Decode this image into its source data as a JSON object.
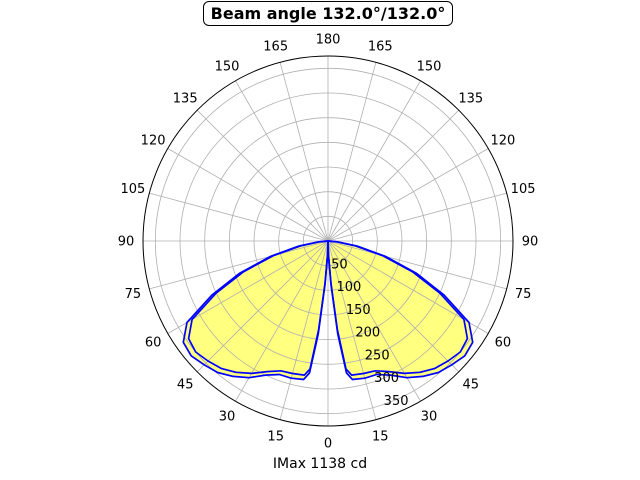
{
  "chart_data": {
    "type": "polar-area",
    "title": "Beam angle 132.0°/132.0°",
    "xlabel": "IMax 1138 cd",
    "angle_tick_labels": [
      "0",
      "15",
      "30",
      "45",
      "60",
      "75",
      "90",
      "105",
      "120",
      "135",
      "150",
      "165",
      "180",
      "165",
      "150",
      "135",
      "120",
      "105",
      "90",
      "75",
      "60",
      "45",
      "30",
      "15"
    ],
    "radial_tick_labels": [
      "50",
      "100",
      "150",
      "200",
      "250",
      "300",
      "350"
    ],
    "radial_ticks": [
      50,
      100,
      150,
      200,
      250,
      300,
      350
    ],
    "rlim": [
      0,
      375
    ],
    "grid": true,
    "fill_color": "#ffff80",
    "line_color": "#0000ff",
    "series": [
      {
        "angles_deg": [
          0,
          2,
          4,
          6,
          8,
          10,
          15,
          20,
          25,
          30,
          35,
          40,
          45,
          50,
          55,
          60,
          65,
          70,
          75,
          80,
          85,
          90
        ],
        "values": [
          0,
          30,
          90,
          190,
          270,
          285,
          288,
          288,
          300,
          320,
          335,
          348,
          355,
          362,
          358,
          330,
          260,
          190,
          120,
          60,
          20,
          0
        ]
      },
      {
        "angles_deg": [
          0,
          2,
          4,
          6,
          8,
          10,
          15,
          20,
          25,
          30,
          35,
          40,
          45,
          50,
          55,
          60,
          65,
          70,
          75,
          80,
          85,
          90
        ],
        "values": [
          0,
          28,
          85,
          180,
          262,
          276,
          278,
          280,
          292,
          310,
          325,
          337,
          344,
          350,
          345,
          318,
          250,
          182,
          115,
          56,
          18,
          0
        ]
      }
    ]
  }
}
